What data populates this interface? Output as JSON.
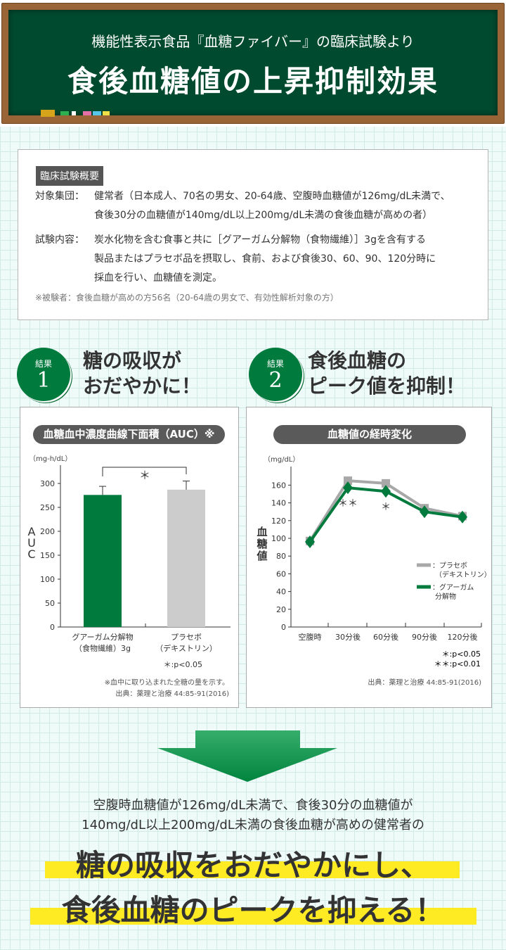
{
  "header": {
    "subtitle": "機能性表示食品『血糖ファイバー』の臨床試験より",
    "title": "食後血糖値の上昇抑制効果"
  },
  "summary": {
    "tag": "臨床試験概要",
    "rows": [
      {
        "key": "対象集団：",
        "lines": [
          "健常者（日本成人、70名の男女、20-64歳、空腹時血糖値が126mg/dL未満で、",
          "食後30分の血糖値が140mg/dL以上200mg/dL未満の食後血糖が高めの者）"
        ]
      },
      {
        "key": "試験内容：",
        "lines": [
          "炭水化物を含む食事と共に［グアーガム分解物（食物繊維）］3gを含有する",
          "製品またはプラセボ品を摂取し、食前、および食後30、60、90、120分時に",
          "採血を行い、血糖値を測定。"
        ]
      }
    ],
    "note": "※被験者：食後血糖が高めの方56名（20-64歳の男女で、有効性解析対象の方）"
  },
  "results": [
    {
      "tag": "結果",
      "num": "1",
      "line1": "糖の吸収が",
      "line2": "おだやかに！"
    },
    {
      "tag": "結果",
      "num": "2",
      "line1": "食後血糖の",
      "line2": "ピーク値を抑制！"
    }
  ],
  "chart_data": [
    {
      "type": "bar",
      "title": "血糖血中濃度曲線下面積（AUC）※",
      "unit": "（mg-h/dL）",
      "ylabel": "AUC",
      "ylim": [
        0,
        300
      ],
      "yticks": [
        "0",
        "50",
        "100",
        "150",
        "200",
        "250",
        "300"
      ],
      "categories": [
        [
          "グアーガム分解物",
          "（食物繊維）3g"
        ],
        [
          "プラセボ",
          "（デキストリン）"
        ]
      ],
      "values": [
        276,
        287
      ],
      "error": [
        18,
        18
      ],
      "colors": [
        "#007a3d",
        "#cccccc"
      ],
      "significance": "＊",
      "pnote": "＊:p<0.05",
      "footnote": "※血中に取り込まれた全糖の量を示す。",
      "source": "出典：薬理と治療 44:85-91(2016)"
    },
    {
      "type": "line",
      "title": "血糖値の経時変化",
      "unit": "（mg/dL）",
      "ylabel": "血糖値",
      "ylim": [
        0,
        160
      ],
      "yticks": [
        "0",
        "20",
        "40",
        "60",
        "80",
        "100",
        "120",
        "140",
        "160"
      ],
      "categories": [
        "空腹時",
        "30分後",
        "60分後",
        "90分後",
        "120分後"
      ],
      "series": [
        {
          "name": "：プラセボ",
          "name2": "（デキストリン）",
          "values": [
            97,
            165,
            162,
            134,
            125
          ],
          "color": "#a8a8a8"
        },
        {
          "name": "：グアーガム",
          "name2": "分解物",
          "values": [
            96,
            157,
            153,
            130,
            124
          ],
          "color": "#007a3d"
        }
      ],
      "marks": [
        "",
        "＊＊",
        "＊",
        "",
        ""
      ],
      "pnotes": [
        "＊:p<0.05",
        "＊＊:p<0.01"
      ],
      "source": "出典：薬理と治療 44:85-91(2016)"
    }
  ],
  "conclusion": {
    "line1": "空腹時血糖値が126mg/dL未満で、食後30分の血糖値が",
    "line2": "140mg/dL以上200mg/dL未満の食後血糖が高めの健常者の",
    "big1": "糖の吸収をおだやかにし、",
    "big2": "食後血糖のピークを抑える！"
  },
  "colors": {
    "green": "#007a3d",
    "board": "#004a2f",
    "highlight": "#ffeb24"
  }
}
